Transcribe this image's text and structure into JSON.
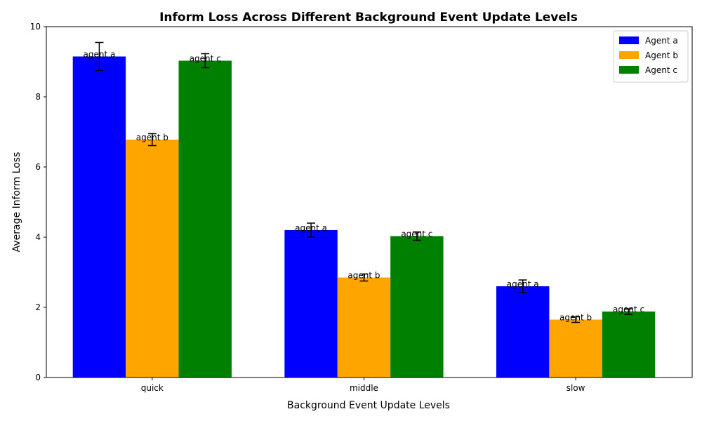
{
  "chart_data": {
    "type": "bar",
    "title": "Inform Loss Across Different Background Event Update Levels",
    "xlabel": "Background Event Update Levels",
    "ylabel": "Average Inform Loss",
    "categories": [
      "quick",
      "middle",
      "slow"
    ],
    "ylim": [
      0,
      10
    ],
    "yticks": [
      0,
      2,
      4,
      6,
      8,
      10
    ],
    "legend_position": "top-right",
    "grid": false,
    "series": [
      {
        "name": "Agent a",
        "bar_label": "agent a",
        "color": "#0000ff",
        "values": [
          9.15,
          4.2,
          2.6
        ],
        "errors": [
          0.4,
          0.2,
          0.18
        ]
      },
      {
        "name": "Agent b",
        "bar_label": "agent b",
        "color": "#ffa500",
        "values": [
          6.78,
          2.85,
          1.65
        ],
        "errors": [
          0.17,
          0.1,
          0.08
        ]
      },
      {
        "name": "Agent c",
        "bar_label": "agent c",
        "color": "#008000",
        "values": [
          9.03,
          4.03,
          1.88
        ],
        "errors": [
          0.2,
          0.12,
          0.08
        ]
      }
    ]
  }
}
